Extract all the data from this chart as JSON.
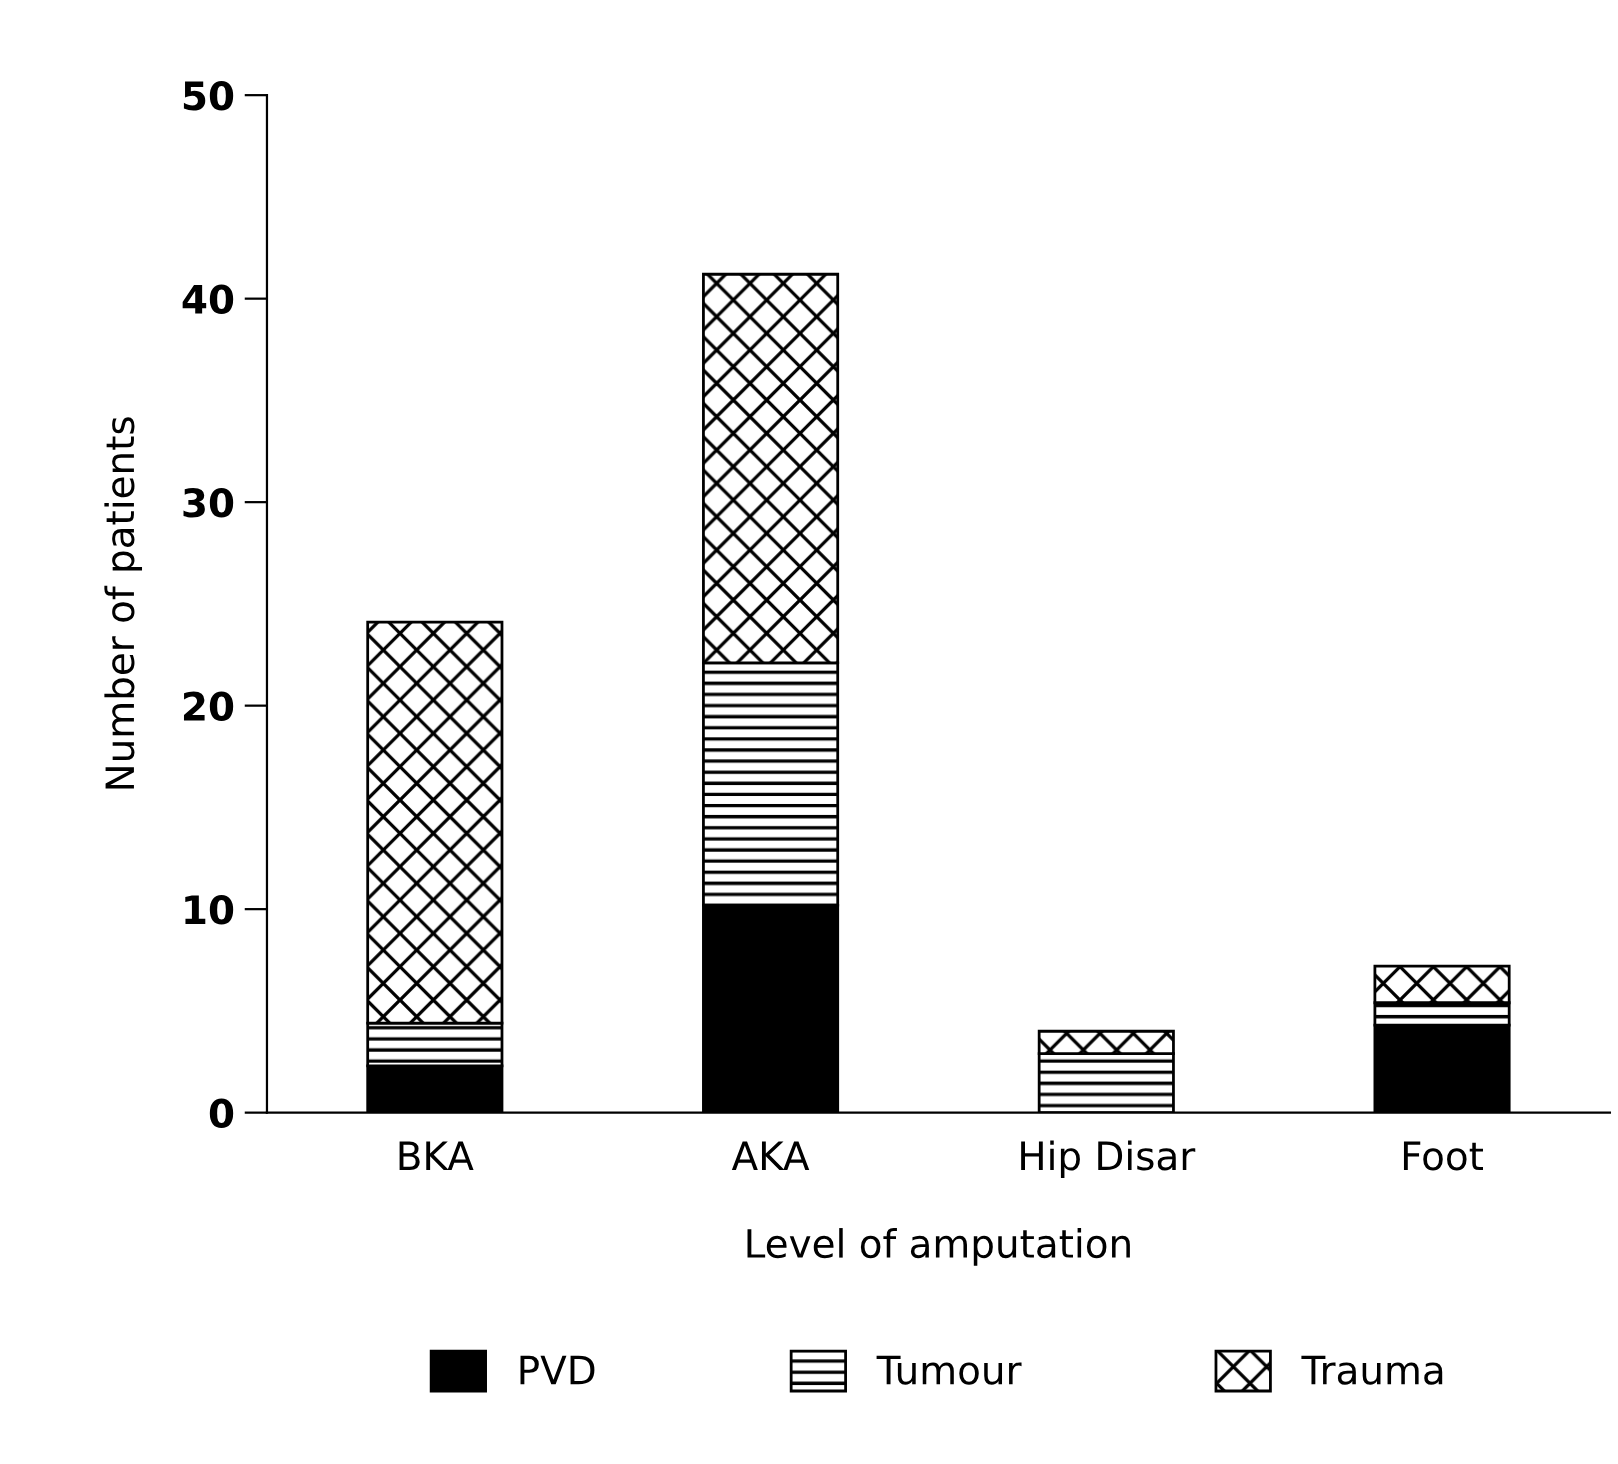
{
  "chart_data": {
    "type": "bar",
    "stacked": true,
    "xlabel": "Level of amputation",
    "ylabel": "Number of patients",
    "categories": [
      "BKA",
      "AKA",
      "Hip Disar",
      "Foot"
    ],
    "series": [
      {
        "name": "PVD",
        "color": "#000000",
        "values": [
          2.3,
          10.2,
          0,
          4.3
        ]
      },
      {
        "name": "Tumour",
        "color": "#000000",
        "values": [
          2.1,
          11.9,
          2.9,
          1.1
        ]
      },
      {
        "name": "Trauma",
        "color": "#000000",
        "values": [
          19.7,
          19.1,
          1.1,
          1.8
        ]
      }
    ],
    "ylim": [
      0,
      50
    ],
    "yticks": [
      0,
      10,
      20,
      30,
      40,
      50
    ],
    "grid": false,
    "legend": "bottom"
  }
}
